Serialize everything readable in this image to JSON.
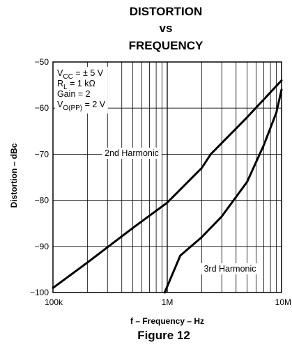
{
  "chart_data": {
    "type": "line",
    "title": [
      "DISTORTION",
      "vs",
      "FREQUENCY"
    ],
    "xlabel": "f – Frequency – Hz",
    "ylabel": "Distortion – dBc",
    "x_scale": "log",
    "xlim": [
      100000,
      10000000
    ],
    "ylim": [
      -100,
      -50
    ],
    "x_tick_values": [
      100000,
      1000000,
      10000000
    ],
    "x_tick_labels": [
      "100k",
      "1M",
      "10M"
    ],
    "y_tick_values": [
      -50,
      -60,
      -70,
      -80,
      -90,
      -100
    ],
    "y_tick_labels": [
      "−50",
      "−60",
      "−70",
      "−80",
      "−90",
      "−100"
    ],
    "grid": true,
    "conditions": [
      {
        "main": "V",
        "sub": "CC",
        "rest": " = ± 5 V"
      },
      {
        "main": "R",
        "sub": "L",
        "rest": " = 1 kΩ"
      },
      {
        "main": "Gain = 2",
        "sub": "",
        "rest": ""
      },
      {
        "main": "V",
        "sub": "O(PP)",
        "rest": " = 2 V"
      }
    ],
    "series": [
      {
        "name": "2nd Harmonic",
        "x": [
          100000,
          200000,
          500000,
          1000000,
          2000000,
          2400000,
          5000000,
          10000000
        ],
        "y": [
          -99,
          -93.5,
          -86,
          -80.5,
          -73,
          -70,
          -62,
          -54
        ]
      },
      {
        "name": "3rd Harmonic",
        "x": [
          950000,
          1300000,
          2000000,
          3000000,
          5000000,
          7000000,
          9000000,
          10000000
        ],
        "y": [
          -100,
          -92,
          -88,
          -83.5,
          -76,
          -68,
          -61,
          -56
        ]
      }
    ]
  },
  "caption": "Figure 12"
}
